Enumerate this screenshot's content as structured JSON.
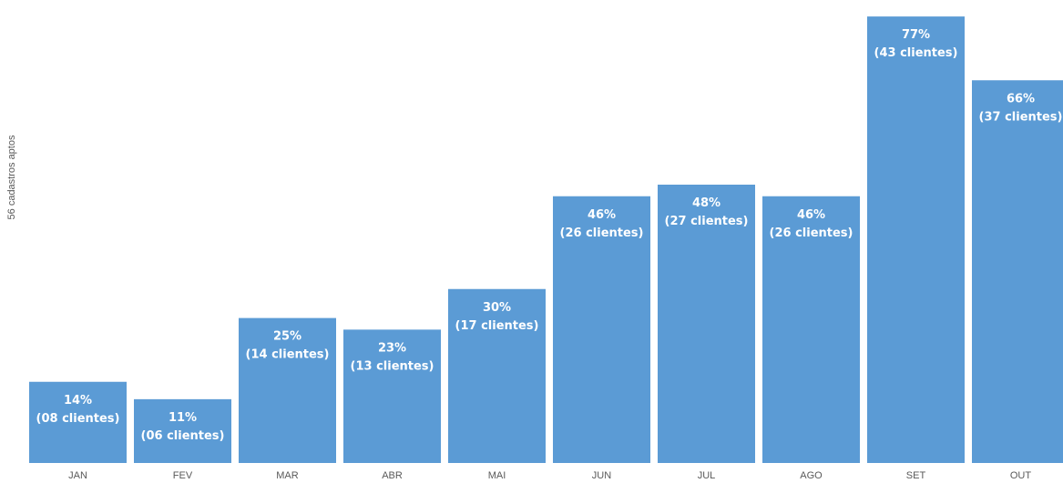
{
  "chart_data": {
    "type": "bar",
    "categories": [
      "JAN",
      "FEV",
      "MAR",
      "ABR",
      "MAI",
      "JUN",
      "JUL",
      "AGO",
      "SET",
      "OUT"
    ],
    "values": [
      14,
      11,
      25,
      23,
      30,
      46,
      48,
      46,
      77,
      66
    ],
    "value_labels": [
      "14%",
      "11%",
      "25%",
      "23%",
      "30%",
      "46%",
      "48%",
      "46%",
      "77%",
      "66%"
    ],
    "client_labels": [
      "(08 clientes)",
      "(06 clientes)",
      "(14 clientes)",
      "(13 clientes)",
      "(17 clientes)",
      "(26 clientes)",
      "(27 clientes)",
      "(26 clientes)",
      "(43 clientes)",
      "(37 clientes)"
    ],
    "title": "",
    "xlabel": "",
    "ylabel": "56 cadastros aptos",
    "ylim": [
      0,
      80
    ],
    "grid": false,
    "legend": "none",
    "colors": {
      "bar": "#5b9bd5",
      "bar_text": "#ffffff",
      "axis_text": "#595959"
    }
  }
}
